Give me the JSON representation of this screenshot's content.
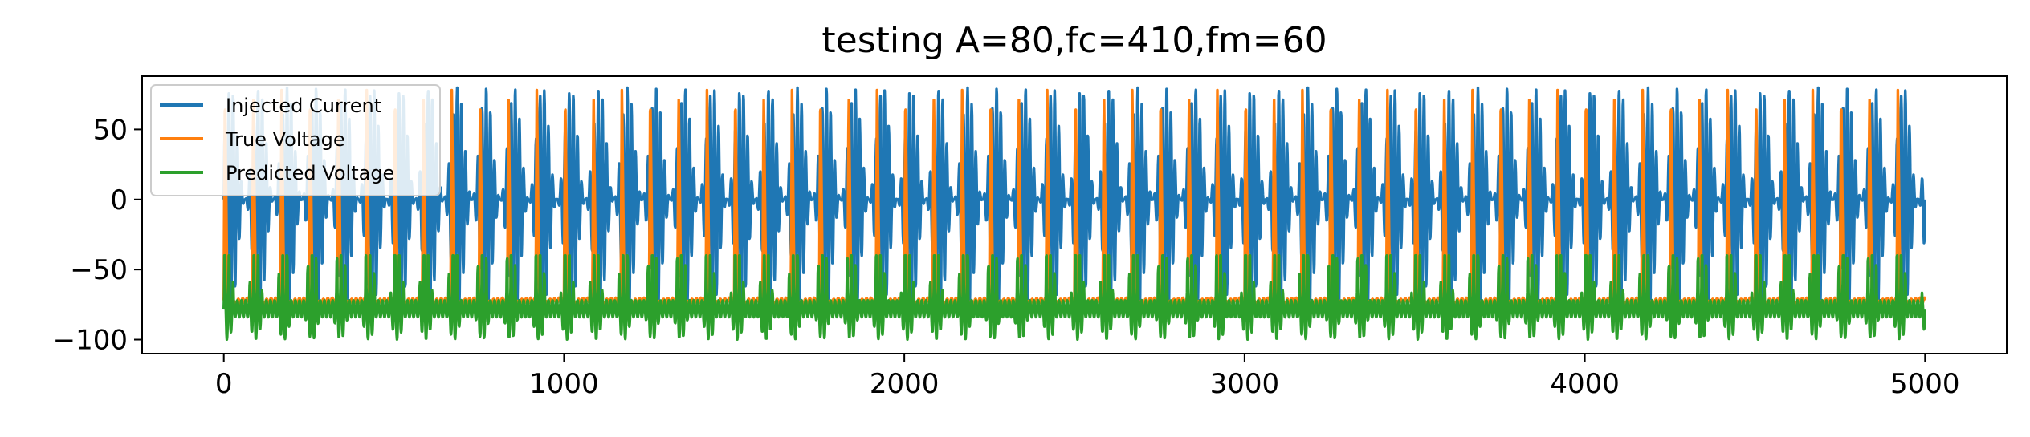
{
  "chart_data": {
    "type": "line",
    "title": "testing A=80,fc=410,fm=60",
    "xlabel": "",
    "ylabel": "",
    "xlim": [
      -240,
      5240
    ],
    "ylim": [
      -110,
      88
    ],
    "xticks": [
      0,
      1000,
      2000,
      3000,
      4000,
      5000
    ],
    "xtick_labels": [
      "0",
      "1000",
      "2000",
      "3000",
      "4000",
      "5000"
    ],
    "yticks": [
      50,
      0,
      -50,
      -100
    ],
    "ytick_labels": [
      "50",
      "0",
      "−50",
      "−100"
    ],
    "grid": false,
    "legend": {
      "position": "top-left"
    },
    "samples": 5000,
    "series": [
      {
        "name": "Injected Current",
        "color": "#1f77b4",
        "model": "A*(1+sin(2*pi*fm*t))*sin(2*pi*fc*t)/2, t=i/5000",
        "params": {
          "A": 80,
          "fc": 410,
          "fm": 60,
          "x_start": 0,
          "x_end": 5000
        }
      },
      {
        "name": "True Voltage",
        "color": "#ff7f0e",
        "model": "spiking response between rest and peak",
        "params": {
          "rest": -72,
          "peak": 78,
          "spikes": 60,
          "x_start": 0,
          "x_end": 5000
        }
      },
      {
        "name": "Predicted Voltage",
        "color": "#2ca02c",
        "model": "oscillation around baseline",
        "params": {
          "baseline": -78,
          "min": -100,
          "max": -40,
          "x_start": 0,
          "x_end": 5000
        }
      }
    ]
  }
}
